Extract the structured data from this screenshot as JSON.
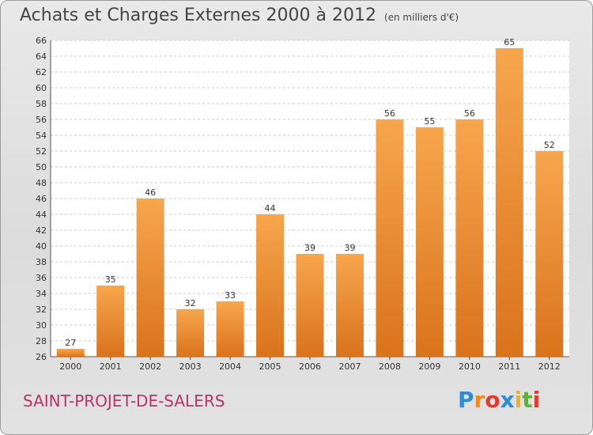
{
  "chart_data": {
    "type": "bar",
    "title": "Achats et Charges Externes 2000 à 2012",
    "subtitle": "(en milliers d'€)",
    "categories": [
      "2000",
      "2001",
      "2002",
      "2003",
      "2004",
      "2005",
      "2006",
      "2007",
      "2008",
      "2009",
      "2010",
      "2011",
      "2012"
    ],
    "values": [
      27,
      35,
      46,
      32,
      33,
      44,
      39,
      39,
      56,
      55,
      56,
      65,
      52
    ],
    "ylim": [
      26,
      66
    ],
    "yticks": [
      26,
      28,
      30,
      32,
      34,
      36,
      38,
      40,
      42,
      44,
      46,
      48,
      50,
      52,
      54,
      56,
      58,
      60,
      62,
      64,
      66
    ],
    "grid": true,
    "bar_color": "#f09a3e"
  },
  "footer": {
    "commune": "SAINT-PROJET-DE-SALERS",
    "logo_letters": [
      "P",
      "r",
      "o",
      "x",
      "i",
      "t",
      "i"
    ],
    "logo_colors": [
      "#2e8bd6",
      "#f08a1c",
      "#e23a2e",
      "#2e8bd6",
      "#f0b21c",
      "#57b530",
      "#e23a2e"
    ]
  }
}
